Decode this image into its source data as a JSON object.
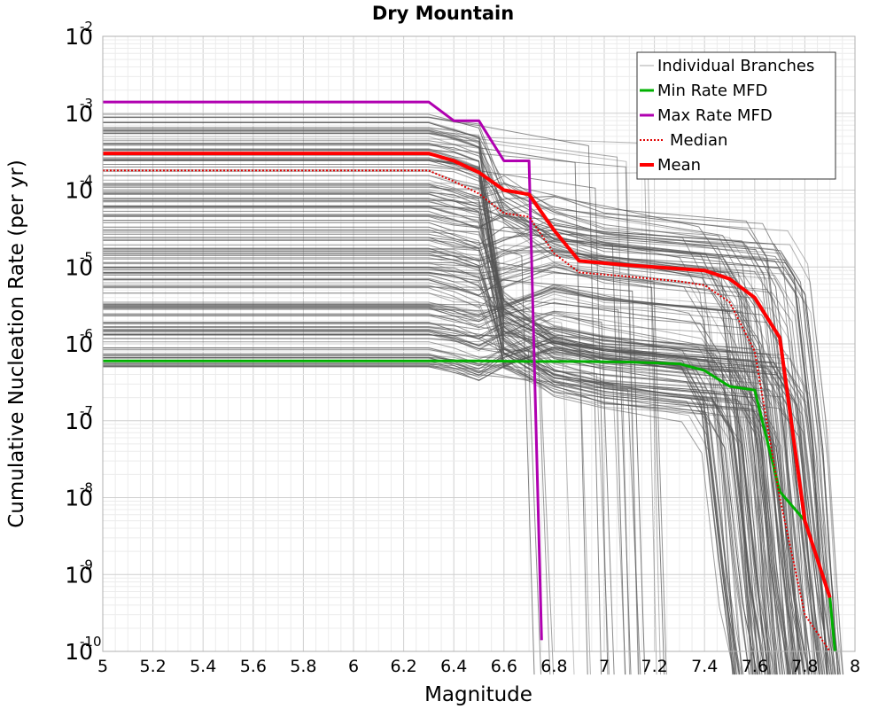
{
  "chart_data": {
    "type": "line",
    "title": "Dry Mountain",
    "xlabel": "Magnitude",
    "ylabel": "Cumulative Nucleation Rate (per yr)",
    "xlim": [
      5,
      8
    ],
    "ylim": [
      1e-10,
      0.01
    ],
    "yscale": "log",
    "grid": true,
    "legend_position": "top-right",
    "x_ticks": [
      "5",
      "5.2",
      "5.4",
      "5.6",
      "5.8",
      "6",
      "6.2",
      "6.4",
      "6.6",
      "6.8",
      "7",
      "7.2",
      "7.4",
      "7.6",
      "7.8",
      "8"
    ],
    "y_ticks": [
      {
        "base": "10",
        "exp": "-2"
      },
      {
        "base": "10",
        "exp": "-3"
      },
      {
        "base": "10",
        "exp": "-4"
      },
      {
        "base": "10",
        "exp": "-5"
      },
      {
        "base": "10",
        "exp": "-6"
      },
      {
        "base": "10",
        "exp": "-7"
      },
      {
        "base": "10",
        "exp": "-8"
      },
      {
        "base": "10",
        "exp": "-9"
      },
      {
        "base": "10",
        "exp": "-10"
      }
    ],
    "series": [
      {
        "name": "Min Rate MFD",
        "color": "#00b000",
        "style": "solid",
        "x": [
          5.0,
          6.3,
          6.5,
          6.7,
          6.9,
          7.1,
          7.3,
          7.4,
          7.5,
          7.6,
          7.7,
          7.8,
          7.9,
          7.92
        ],
        "y": [
          6e-07,
          6e-07,
          6e-07,
          5.9e-07,
          5.9e-07,
          5.8e-07,
          5.5e-07,
          4.5e-07,
          2.8e-07,
          2.5e-07,
          1.2e-08,
          5e-09,
          5e-10,
          1e-10
        ]
      },
      {
        "name": "Max Rate MFD",
        "color": "#b000b0",
        "style": "solid",
        "x": [
          5.0,
          6.3,
          6.4,
          6.5,
          6.6,
          6.7,
          6.75
        ],
        "y": [
          0.0014,
          0.0014,
          0.0008,
          0.0008,
          0.00024,
          0.00024,
          1.4e-10
        ]
      },
      {
        "name": "Median",
        "color": "#e00000",
        "style": "dotted",
        "x": [
          5.0,
          6.3,
          6.4,
          6.5,
          6.6,
          6.7,
          6.8,
          6.9,
          7.1,
          7.3,
          7.4,
          7.5,
          7.6,
          7.7,
          7.8,
          7.9
        ],
        "y": [
          0.00018,
          0.00018,
          0.00013,
          9e-05,
          5e-05,
          4.5e-05,
          1.5e-05,
          8.5e-06,
          7.5e-06,
          6.5e-06,
          5.8e-06,
          3.5e-06,
          8e-07,
          1e-08,
          3e-10,
          1e-10
        ]
      },
      {
        "name": "Mean",
        "color": "#ff0000",
        "style": "solid",
        "x": [
          5.0,
          6.3,
          6.4,
          6.5,
          6.6,
          6.7,
          6.8,
          6.9,
          7.1,
          7.3,
          7.4,
          7.5,
          7.6,
          7.7,
          7.8,
          7.9
        ],
        "y": [
          0.0003,
          0.0003,
          0.00024,
          0.00017,
          0.0001,
          8.8e-05,
          3e-05,
          1.2e-05,
          1.05e-05,
          9.5e-06,
          9e-06,
          7e-06,
          4e-06,
          1.2e-06,
          5e-09,
          5e-10
        ]
      },
      {
        "name": "Individual Branches",
        "color": "#555555",
        "style": "solid",
        "branch_count": 180
      }
    ]
  }
}
